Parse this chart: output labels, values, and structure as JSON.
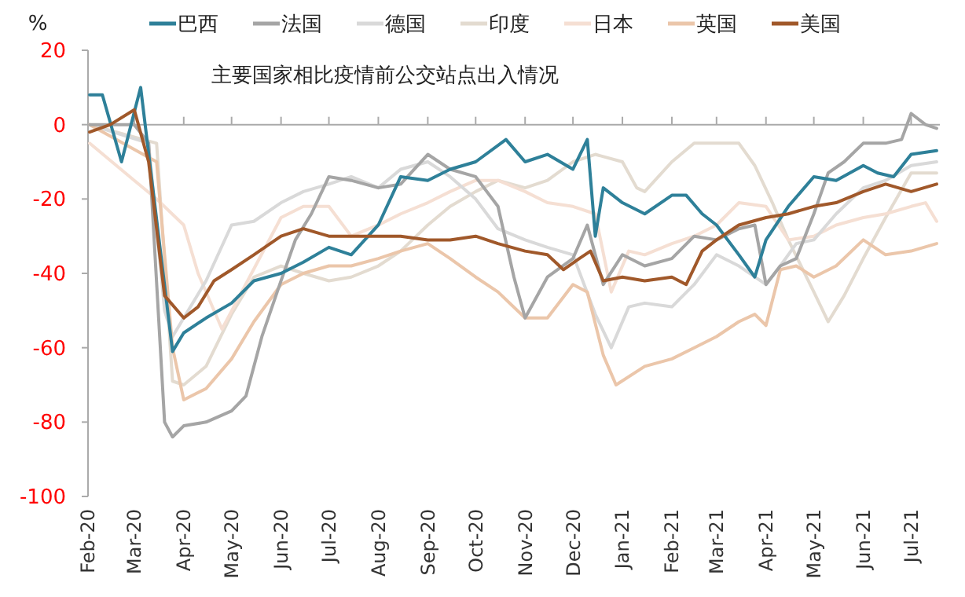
{
  "chart_data": {
    "type": "line",
    "title": "主要国家相比疫情前公交站点出入情况",
    "ylabel": "%",
    "legend": "top",
    "line_style": "solid",
    "marker": "none",
    "xlim": [
      "2020-02-01",
      "2021-07-19"
    ],
    "ylim": [
      -100,
      20
    ],
    "yticks": [
      -100,
      -80,
      -60,
      -40,
      -20,
      0,
      20
    ],
    "xticks": [
      {
        "value": "2020-02-01",
        "label": "Feb-20"
      },
      {
        "value": "2020-03-01",
        "label": "Mar-20"
      },
      {
        "value": "2020-04-01",
        "label": "Apr-20"
      },
      {
        "value": "2020-05-01",
        "label": "May-20"
      },
      {
        "value": "2020-06-01",
        "label": "Jun-20"
      },
      {
        "value": "2020-07-01",
        "label": "Jul-20"
      },
      {
        "value": "2020-08-01",
        "label": "Aug-20"
      },
      {
        "value": "2020-09-01",
        "label": "Sep-20"
      },
      {
        "value": "2020-10-01",
        "label": "Oct-20"
      },
      {
        "value": "2020-11-01",
        "label": "Nov-20"
      },
      {
        "value": "2020-12-01",
        "label": "Dec-20"
      },
      {
        "value": "2021-01-01",
        "label": "Jan-21"
      },
      {
        "value": "2021-02-01",
        "label": "Feb-21"
      },
      {
        "value": "2021-03-01",
        "label": "Mar-21"
      },
      {
        "value": "2021-04-01",
        "label": "Apr-21"
      },
      {
        "value": "2021-05-01",
        "label": "May-21"
      },
      {
        "value": "2021-06-01",
        "label": "Jun-21"
      },
      {
        "value": "2021-07-01",
        "label": "Jul-21"
      }
    ],
    "series": [
      {
        "name": "巴西",
        "color": "#2e8099",
        "x": [
          "2020-02-02",
          "2020-02-10",
          "2020-02-22",
          "2020-03-05",
          "2020-03-25",
          "2020-04-01",
          "2020-04-15",
          "2020-05-01",
          "2020-05-15",
          "2020-06-01",
          "2020-06-15",
          "2020-07-01",
          "2020-07-15",
          "2020-08-01",
          "2020-08-15",
          "2020-09-01",
          "2020-09-15",
          "2020-10-01",
          "2020-10-20",
          "2020-11-01",
          "2020-11-15",
          "2020-12-01",
          "2020-12-10",
          "2020-12-15",
          "2020-12-20",
          "2021-01-01",
          "2021-01-15",
          "2021-02-01",
          "2021-02-10",
          "2021-02-20",
          "2021-03-01",
          "2021-03-15",
          "2021-03-25",
          "2021-04-01",
          "2021-04-15",
          "2021-05-01",
          "2021-05-15",
          "2021-06-01",
          "2021-06-10",
          "2021-06-20",
          "2021-07-01",
          "2021-07-17"
        ],
        "values": [
          8,
          8,
          -10,
          10,
          -61,
          -56,
          -52,
          -48,
          -42,
          -40,
          -37,
          -33,
          -35,
          -27,
          -14,
          -15,
          -12,
          -10,
          -4,
          -10,
          -8,
          -12,
          -4,
          -30,
          -17,
          -21,
          -24,
          -19,
          -19,
          -24,
          -27,
          -35,
          -41,
          -31,
          -22,
          -14,
          -15,
          -11,
          -13,
          -14,
          -8,
          -7
        ]
      },
      {
        "name": "法国",
        "color": "#a5a5a5",
        "x": [
          "2020-02-02",
          "2020-03-01",
          "2020-03-10",
          "2020-03-20",
          "2020-03-25",
          "2020-04-01",
          "2020-04-15",
          "2020-05-01",
          "2020-05-10",
          "2020-05-20",
          "2020-06-01",
          "2020-06-10",
          "2020-06-20",
          "2020-07-01",
          "2020-07-15",
          "2020-08-01",
          "2020-08-15",
          "2020-09-01",
          "2020-09-15",
          "2020-10-01",
          "2020-10-15",
          "2020-10-25",
          "2020-11-01",
          "2020-11-15",
          "2020-12-01",
          "2020-12-10",
          "2020-12-20",
          "2021-01-01",
          "2021-01-15",
          "2021-02-01",
          "2021-02-15",
          "2021-03-01",
          "2021-03-15",
          "2021-03-25",
          "2021-04-01",
          "2021-04-10",
          "2021-04-20",
          "2021-05-01",
          "2021-05-10",
          "2021-05-20",
          "2021-06-01",
          "2021-06-15",
          "2021-06-25",
          "2021-07-01",
          "2021-07-10",
          "2021-07-17"
        ],
        "values": [
          0,
          0,
          -5,
          -80,
          -84,
          -81,
          -80,
          -77,
          -73,
          -57,
          -42,
          -31,
          -24,
          -14,
          -15,
          -17,
          -16,
          -8,
          -12,
          -14,
          -22,
          -41,
          -52,
          -41,
          -36,
          -27,
          -43,
          -35,
          -38,
          -36,
          -30,
          -31,
          -28,
          -27,
          -43,
          -38,
          -36,
          -24,
          -13,
          -10,
          -5,
          -5,
          -4,
          3,
          0,
          -1
        ]
      },
      {
        "name": "德国",
        "color": "#d9d9d9",
        "x": [
          "2020-02-02",
          "2020-03-10",
          "2020-03-20",
          "2020-03-25",
          "2020-04-01",
          "2020-04-15",
          "2020-05-01",
          "2020-05-15",
          "2020-06-01",
          "2020-06-15",
          "2020-07-01",
          "2020-07-15",
          "2020-08-01",
          "2020-08-15",
          "2020-09-01",
          "2020-09-15",
          "2020-10-01",
          "2020-10-15",
          "2020-11-01",
          "2020-11-15",
          "2020-12-01",
          "2020-12-15",
          "2020-12-25",
          "2021-01-05",
          "2021-01-15",
          "2021-02-01",
          "2021-02-15",
          "2021-03-01",
          "2021-03-15",
          "2021-04-01",
          "2021-04-10",
          "2021-04-20",
          "2021-05-01",
          "2021-05-15",
          "2021-06-01",
          "2021-06-15",
          "2021-07-01",
          "2021-07-17"
        ],
        "values": [
          0,
          -5,
          -50,
          -57,
          -52,
          -42,
          -27,
          -26,
          -21,
          -18,
          -16,
          -14,
          -17,
          -12,
          -10,
          -14,
          -20,
          -28,
          -31,
          -33,
          -35,
          -51,
          -60,
          -49,
          -48,
          -49,
          -43,
          -35,
          -38,
          -43,
          -38,
          -32,
          -31,
          -24,
          -17,
          -15,
          -11,
          -10
        ]
      },
      {
        "name": "印度",
        "color": "#e3dbd0",
        "x": [
          "2020-02-02",
          "2020-03-15",
          "2020-03-25",
          "2020-04-01",
          "2020-04-15",
          "2020-05-01",
          "2020-05-15",
          "2020-06-01",
          "2020-06-15",
          "2020-07-01",
          "2020-07-15",
          "2020-08-01",
          "2020-08-15",
          "2020-09-01",
          "2020-09-15",
          "2020-10-01",
          "2020-10-15",
          "2020-11-01",
          "2020-11-15",
          "2020-12-01",
          "2020-12-15",
          "2021-01-01",
          "2021-01-10",
          "2021-01-15",
          "2021-02-01",
          "2021-02-15",
          "2021-03-01",
          "2021-03-15",
          "2021-03-25",
          "2021-04-05",
          "2021-04-15",
          "2021-05-01",
          "2021-05-10",
          "2021-05-20",
          "2021-06-01",
          "2021-06-15",
          "2021-07-01",
          "2021-07-17"
        ],
        "values": [
          0,
          -5,
          -69,
          -70,
          -65,
          -51,
          -41,
          -38,
          -40,
          -42,
          -41,
          -38,
          -34,
          -27,
          -22,
          -18,
          -15,
          -17,
          -15,
          -10,
          -8,
          -10,
          -17,
          -18,
          -10,
          -5,
          -5,
          -5,
          -11,
          -21,
          -31,
          -45,
          -53,
          -46,
          -36,
          -25,
          -13,
          -13
        ]
      },
      {
        "name": "日本",
        "color": "#f5dfd3",
        "x": [
          "2020-02-02",
          "2020-03-01",
          "2020-03-15",
          "2020-04-01",
          "2020-04-10",
          "2020-04-25",
          "2020-06-01",
          "2020-06-15",
          "2020-07-01",
          "2020-07-15",
          "2020-08-01",
          "2020-08-15",
          "2020-09-01",
          "2020-09-15",
          "2020-10-01",
          "2020-10-15",
          "2020-11-01",
          "2020-11-15",
          "2020-12-01",
          "2020-12-15",
          "2020-12-25",
          "2021-01-05",
          "2021-01-15",
          "2021-02-01",
          "2021-02-15",
          "2021-03-01",
          "2021-03-15",
          "2021-04-01",
          "2021-04-15",
          "2021-05-01",
          "2021-05-15",
          "2021-06-01",
          "2021-06-15",
          "2021-07-01",
          "2021-07-10",
          "2021-07-17"
        ],
        "values": [
          -5,
          -15,
          -20,
          -27,
          -40,
          -55,
          -25,
          -22,
          -22,
          -30,
          -27,
          -24,
          -21,
          -18,
          -15,
          -15,
          -18,
          -21,
          -22,
          -24,
          -45,
          -34,
          -35,
          -32,
          -30,
          -27,
          -21,
          -22,
          -31,
          -30,
          -27,
          -25,
          -24,
          -22,
          -21,
          -26
        ]
      },
      {
        "name": "英国",
        "color": "#ebc6aa",
        "x": [
          "2020-02-02",
          "2020-03-15",
          "2020-03-25",
          "2020-04-01",
          "2020-04-15",
          "2020-05-01",
          "2020-05-15",
          "2020-06-01",
          "2020-06-15",
          "2020-07-01",
          "2020-07-15",
          "2020-08-01",
          "2020-08-15",
          "2020-09-01",
          "2020-09-15",
          "2020-10-01",
          "2020-10-15",
          "2020-11-01",
          "2020-11-15",
          "2020-12-01",
          "2020-12-10",
          "2020-12-20",
          "2020-12-28",
          "2021-01-15",
          "2021-02-01",
          "2021-02-15",
          "2021-03-01",
          "2021-03-15",
          "2021-03-25",
          "2021-04-01",
          "2021-04-10",
          "2021-04-20",
          "2021-05-01",
          "2021-05-15",
          "2021-06-01",
          "2021-06-15",
          "2021-07-01",
          "2021-07-17"
        ],
        "values": [
          0,
          -10,
          -60,
          -74,
          -71,
          -63,
          -53,
          -43,
          -40,
          -38,
          -38,
          -36,
          -34,
          -32,
          -36,
          -41,
          -45,
          -52,
          -52,
          -43,
          -45,
          -62,
          -70,
          -65,
          -63,
          -60,
          -57,
          -53,
          -51,
          -54,
          -39,
          -38,
          -41,
          -38,
          -31,
          -35,
          -34,
          -32
        ]
      },
      {
        "name": "美国",
        "color": "#a0582a",
        "x": [
          "2020-02-02",
          "2020-02-15",
          "2020-03-01",
          "2020-03-10",
          "2020-03-20",
          "2020-04-01",
          "2020-04-10",
          "2020-04-20",
          "2020-05-01",
          "2020-05-15",
          "2020-06-01",
          "2020-06-15",
          "2020-07-01",
          "2020-07-15",
          "2020-08-01",
          "2020-08-15",
          "2020-09-01",
          "2020-09-15",
          "2020-10-01",
          "2020-10-15",
          "2020-11-01",
          "2020-11-15",
          "2020-11-25",
          "2020-12-05",
          "2020-12-12",
          "2020-12-20",
          "2021-01-01",
          "2021-01-15",
          "2021-02-01",
          "2021-02-10",
          "2021-02-20",
          "2021-03-01",
          "2021-03-15",
          "2021-04-01",
          "2021-04-15",
          "2021-05-01",
          "2021-05-15",
          "2021-06-01",
          "2021-06-15",
          "2021-07-01",
          "2021-07-17"
        ],
        "values": [
          -2,
          0,
          4,
          -10,
          -46,
          -52,
          -49,
          -42,
          -39,
          -35,
          -30,
          -28,
          -30,
          -30,
          -30,
          -30,
          -31,
          -31,
          -30,
          -32,
          -34,
          -35,
          -39,
          -36,
          -34,
          -42,
          -41,
          -42,
          -41,
          -43,
          -34,
          -31,
          -27,
          -25,
          -24,
          -22,
          -21,
          -18,
          -16,
          -18,
          -16
        ]
      }
    ]
  }
}
